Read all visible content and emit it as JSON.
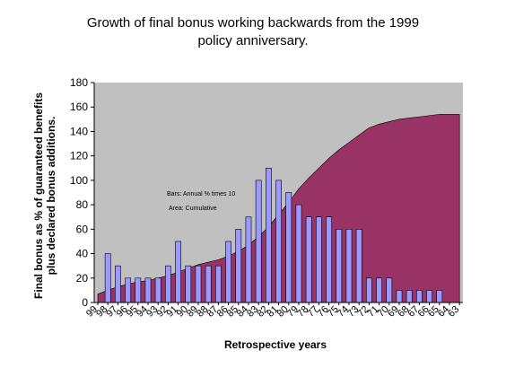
{
  "title_line_1": "Growth of final bonus working backwards from the 1999",
  "title_line_2": "policy anniversary.",
  "chart_data": {
    "type": "bar",
    "title": "Growth of final bonus working backwards from the 1999 policy anniversary.",
    "xlabel": "Retrospective years",
    "ylabel_line_1": "Final bonus as % of guaranteed benefits",
    "ylabel_line_2": "plus declared bonus additions.",
    "ylim": [
      0,
      180
    ],
    "yticks": [
      0,
      20,
      40,
      60,
      80,
      100,
      120,
      140,
      160,
      180
    ],
    "categories": [
      "99",
      "98",
      "97",
      "96",
      "95",
      "94",
      "93",
      "92",
      "91",
      "90",
      "89",
      "88",
      "87",
      "86",
      "85",
      "84",
      "83",
      "82",
      "81",
      "80",
      "79",
      "78",
      "77",
      "76",
      "75",
      "74",
      "73",
      "72",
      "71",
      "70",
      "69",
      "68",
      "67",
      "66",
      "65",
      "64",
      "63"
    ],
    "annotation_bars": "Bars: Annual % times 10",
    "annotation_area": "Area: Cumulative",
    "grid": false,
    "plot_background": "#c0c0c0",
    "series": [
      {
        "kind": "bar",
        "color": "#9999ff",
        "values": [
          null,
          40,
          30,
          20,
          20,
          20,
          20,
          30,
          50,
          30,
          30,
          30,
          30,
          50,
          60,
          70,
          100,
          110,
          100,
          90,
          80,
          70,
          70,
          70,
          60,
          60,
          60,
          20,
          20,
          20,
          10,
          10,
          10,
          10,
          10,
          null,
          null
        ]
      },
      {
        "kind": "area",
        "color": "#993366",
        "values": [
          7,
          10,
          13,
          15,
          17,
          18,
          20,
          22,
          25,
          28,
          31,
          33,
          35,
          38,
          42,
          47,
          54,
          62,
          72,
          82,
          93,
          102,
          110,
          118,
          125,
          131,
          137,
          143,
          146,
          148,
          150,
          151,
          152,
          153,
          154,
          154,
          154
        ]
      }
    ]
  }
}
